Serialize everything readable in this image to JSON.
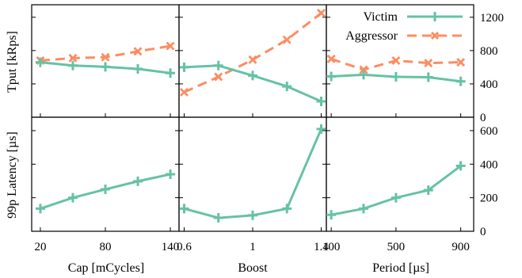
{
  "chart_data": {
    "type": "line",
    "colors": {
      "victim": "#66c2a5",
      "aggressor": "#fc8d62"
    },
    "legend": {
      "placement": "top-right",
      "entries": [
        {
          "label": "Victim",
          "marker": "plus",
          "style": "solid",
          "color": "#66c2a5"
        },
        {
          "label": "Aggressor",
          "marker": "x",
          "style": "dashed",
          "color": "#fc8d62"
        }
      ]
    },
    "row_labels": [
      "Tput [kRps]",
      "99p Latency [µs]"
    ],
    "right_axes": [
      {
        "row": 0,
        "ylim": [
          0,
          1350
        ],
        "ticks": [
          "0",
          "400",
          "800",
          "1200"
        ],
        "tick_values": [
          0,
          400,
          800,
          1200
        ]
      },
      {
        "row": 1,
        "ylim": [
          0,
          680
        ],
        "ticks": [
          "0",
          "200",
          "400",
          "600"
        ],
        "tick_values": [
          0,
          200,
          400,
          600
        ]
      }
    ],
    "columns": [
      {
        "xlabel": "Cap [mCycles]",
        "xlim": [
          12,
          148
        ],
        "x": [
          20,
          50,
          80,
          110,
          140
        ],
        "xticks": [
          "20",
          "80",
          "140"
        ],
        "xtick_values": [
          20,
          80,
          140
        ],
        "tput": {
          "victim": [
            660,
            620,
            605,
            580,
            530
          ],
          "aggressor": [
            680,
            710,
            720,
            790,
            855
          ]
        },
        "latency": {
          "victim": [
            135,
            200,
            250,
            298,
            340
          ]
        }
      },
      {
        "xlabel": "Boost",
        "xlim": [
          0.57,
          1.43
        ],
        "x": [
          0.6,
          0.8,
          1.0,
          1.2,
          1.4
        ],
        "xticks": [
          "0.6",
          "1",
          "1.4"
        ],
        "xtick_values": [
          0.6,
          1.0,
          1.4
        ],
        "tput": {
          "victim": [
            600,
            620,
            500,
            370,
            190
          ],
          "aggressor": [
            300,
            485,
            690,
            930,
            1250
          ]
        },
        "latency": {
          "victim": [
            135,
            80,
            95,
            135,
            610
          ]
        }
      },
      {
        "xlabel": "Period [µs]",
        "xlim": [
          70,
          980
        ],
        "x": [
          100,
          300,
          500,
          700,
          900
        ],
        "xticks": [
          "100",
          "500",
          "900"
        ],
        "xtick_values": [
          100,
          500,
          900
        ],
        "tput": {
          "victim": [
            490,
            510,
            485,
            480,
            430
          ],
          "aggressor": [
            700,
            570,
            680,
            650,
            660
          ]
        },
        "latency": {
          "victim": [
            98,
            135,
            200,
            245,
            390
          ]
        }
      }
    ]
  }
}
